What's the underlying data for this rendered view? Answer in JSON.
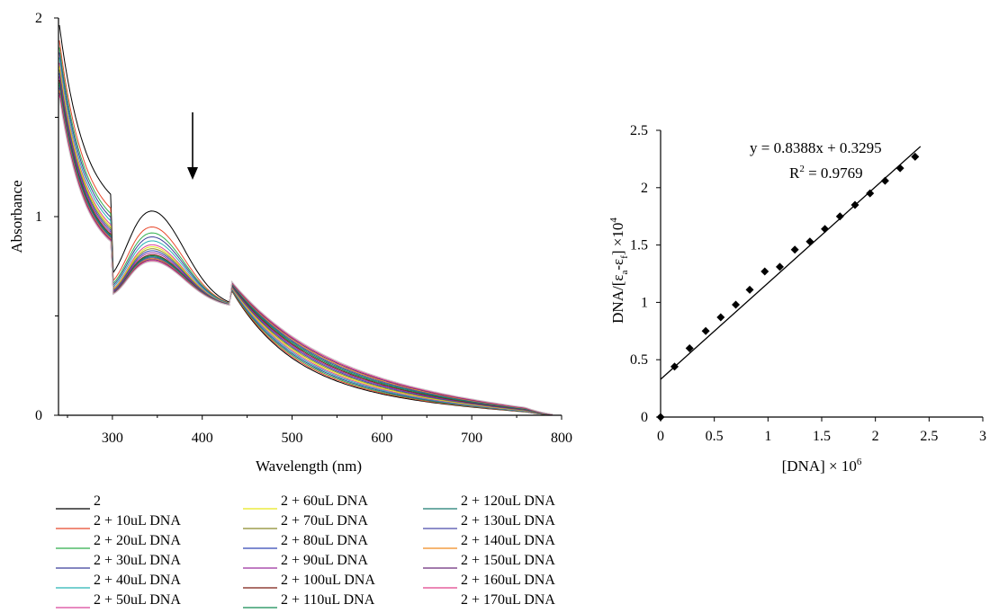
{
  "chart_data": [
    {
      "type": "line",
      "xlabel": "Wavelength (nm)",
      "ylabel": "Absorbance",
      "xlim": [
        240,
        800
      ],
      "ylim": [
        0,
        2
      ],
      "x_ticks": [
        "300",
        "400",
        "500",
        "600",
        "700",
        "800"
      ],
      "y_ticks": [
        "0",
        "1",
        "2"
      ],
      "grid": false,
      "legend_position": "bottom",
      "annotation": "downward arrow near 390 nm",
      "series": [
        {
          "name": "2",
          "color": "#000000",
          "peak_absorbance": 1.03
        },
        {
          "name": "2 + 10uL DNA",
          "color": "#e8482c",
          "peak_absorbance": 0.95
        },
        {
          "name": "2 + 20uL DNA",
          "color": "#2fae4a",
          "peak_absorbance": 0.92
        },
        {
          "name": "2 + 30uL DNA",
          "color": "#3b3f9a",
          "peak_absorbance": 0.9
        },
        {
          "name": "2 + 40uL DNA",
          "color": "#27b3b3",
          "peak_absorbance": 0.88
        },
        {
          "name": "2 + 50uL DNA",
          "color": "#d9449a",
          "peak_absorbance": 0.86
        },
        {
          "name": "2 + 60uL DNA",
          "color": "#e6e619",
          "peak_absorbance": 0.85
        },
        {
          "name": "2 + 70uL DNA",
          "color": "#8a8a2a",
          "peak_absorbance": 0.84
        },
        {
          "name": "2 + 80uL DNA",
          "color": "#3246b4",
          "peak_absorbance": 0.83
        },
        {
          "name": "2 + 90uL DNA",
          "color": "#9a2f9e",
          "peak_absorbance": 0.82
        },
        {
          "name": "2 + 100uL DNA",
          "color": "#7a1a12",
          "peak_absorbance": 0.81
        },
        {
          "name": "2 + 110uL DNA",
          "color": "#128a50",
          "peak_absorbance": 0.805
        },
        {
          "name": "2 + 120uL DNA",
          "color": "#1a7a70",
          "peak_absorbance": 0.8
        },
        {
          "name": "2 + 130uL DNA",
          "color": "#4a4aaa",
          "peak_absorbance": 0.795
        },
        {
          "name": "2 + 140uL DNA",
          "color": "#f08a1e",
          "peak_absorbance": 0.79
        },
        {
          "name": "2 + 150uL DNA",
          "color": "#6a2a7a",
          "peak_absorbance": 0.785
        },
        {
          "name": "2 + 160uL DNA",
          "color": "#e0408a",
          "peak_absorbance": 0.78
        },
        {
          "name": "2 + 170uL DNA",
          "color": "#ffffff",
          "peak_absorbance": 0.775
        }
      ]
    },
    {
      "type": "scatter",
      "xlabel": "[DNA] × 10",
      "xlabel_sup": "6",
      "ylabel": "DNA/[ε",
      "ylabel_sub_a": "a",
      "ylabel_mid": "-ε",
      "ylabel_sub_f": "f",
      "ylabel_end": "] ×10",
      "ylabel_sup": "4",
      "xlim": [
        0,
        3
      ],
      "ylim": [
        0,
        2.5
      ],
      "x_ticks": [
        "0",
        "0.5",
        "1",
        "1.5",
        "2",
        "2.5",
        "3"
      ],
      "y_ticks": [
        "0",
        "0.5",
        "1",
        "1.5",
        "2",
        "2.5"
      ],
      "grid": false,
      "equation": "y = 0.8388x + 0.3295",
      "r2_label": "R",
      "r2_sup": "2",
      "r2_value": " = 0.9769",
      "fit": {
        "slope": 0.8388,
        "intercept": 0.3295,
        "x_range": [
          0,
          2.42
        ]
      },
      "points": {
        "x": [
          0,
          0.13,
          0.27,
          0.42,
          0.56,
          0.7,
          0.83,
          0.97,
          1.11,
          1.25,
          1.39,
          1.53,
          1.67,
          1.81,
          1.95,
          2.09,
          2.23,
          2.37
        ],
        "y": [
          0,
          0.44,
          0.6,
          0.75,
          0.87,
          0.98,
          1.11,
          1.27,
          1.31,
          1.46,
          1.53,
          1.64,
          1.75,
          1.85,
          1.95,
          2.06,
          2.17,
          2.27
        ]
      }
    }
  ]
}
